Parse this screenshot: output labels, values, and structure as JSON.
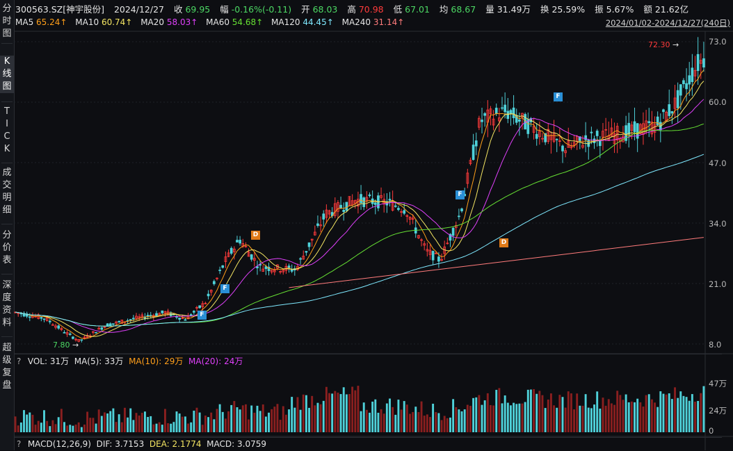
{
  "sidebar": {
    "tabs": [
      {
        "label": "分时图",
        "chars": [
          "分",
          "时",
          "图"
        ],
        "active": false
      },
      {
        "label": "K线图",
        "chars": [
          "K",
          "线",
          "图"
        ],
        "active": true
      },
      {
        "label": "TICK",
        "chars": [
          "T",
          "I",
          "C",
          "K"
        ],
        "active": false
      },
      {
        "label": "成交明细",
        "chars": [
          "成",
          "交",
          "明",
          "细"
        ],
        "active": false
      },
      {
        "label": "分价表",
        "chars": [
          "分",
          "价",
          "表"
        ],
        "active": false
      },
      {
        "label": "深度资料",
        "chars": [
          "深",
          "度",
          "资",
          "料"
        ],
        "active": false
      },
      {
        "label": "超级复盘",
        "chars": [
          "超",
          "级",
          "复",
          "盘"
        ],
        "active": false
      }
    ]
  },
  "quote": {
    "code_name": "300563.SZ[神宇股份]",
    "date": "2024/12/27",
    "close_label": "收",
    "close": "69.95",
    "change_label": "幅",
    "change": "-0.16%(-0.11)",
    "open_label": "开",
    "open": "68.03",
    "high_label": "高",
    "high": "70.98",
    "low_label": "低",
    "low": "67.01",
    "avg_label": "均",
    "avg": "68.67",
    "volume_label": "量",
    "volume": "31.49万",
    "turnover_label": "换",
    "turnover": "25.59%",
    "amplitude_label": "振",
    "amplitude": "5.67%",
    "amount_label": "额",
    "amount": "21.62亿"
  },
  "ma_legend": [
    {
      "name": "MA5",
      "value": "65.24↑",
      "color": "#ff9f1a"
    },
    {
      "name": "MA10",
      "value": "60.74↑",
      "color": "#f5e663"
    },
    {
      "name": "MA20",
      "value": "58.03↑",
      "color": "#e040fb"
    },
    {
      "name": "MA60",
      "value": "54.68↑",
      "color": "#66e033"
    },
    {
      "name": "MA120",
      "value": "44.45↑",
      "color": "#7fe9ff"
    },
    {
      "name": "MA240",
      "value": "31.14↑",
      "color": "#ff7b7b"
    }
  ],
  "range": "2024/01/02-2024/12/27(240日)",
  "price_axis": [
    "73.0",
    "60.0",
    "47.0",
    "34.0",
    "21.0",
    "8.0"
  ],
  "annotations": {
    "max_label": "72.30",
    "min_label": "7.80"
  },
  "signals": [
    {
      "type": "D",
      "label": "D"
    },
    {
      "type": "F",
      "label": "F"
    },
    {
      "type": "F",
      "label": "F"
    },
    {
      "type": "F",
      "label": "F"
    },
    {
      "type": "F",
      "label": "F"
    },
    {
      "type": "D",
      "label": "D"
    }
  ],
  "volume_panel": {
    "prefix": "VOL: 31万",
    "ma5": "MA(5): 33万",
    "ma10": "MA(10): 29万",
    "ma20": "MA(20): 24万",
    "axis": [
      "47万",
      "24万",
      "0"
    ]
  },
  "macd_panel": {
    "title": "MACD(12,26,9)",
    "dif": "DIF: 3.7153",
    "dea": "DEA: 2.1774",
    "macd": "MACD: 3.0759"
  },
  "colors": {
    "up": "#ff3b3b",
    "down": "#4fd1d9",
    "bg": "#0d0e12"
  }
}
